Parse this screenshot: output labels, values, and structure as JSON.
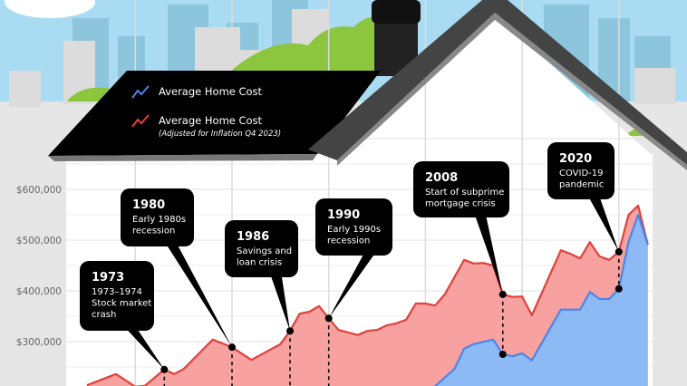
{
  "colors": {
    "blue_line": "#4a86e8",
    "blue_fill": "#8dbaf5",
    "red_line": "#e0413a",
    "red_fill": "#f7a1a0",
    "sky": "#a9dcf2",
    "roof": "#000000",
    "bush": "#8cc63f"
  },
  "legend": {
    "items": [
      {
        "label": "Average Home Cost",
        "sublabel": "",
        "color": "#4a86e8",
        "icon": "line-chart-icon"
      },
      {
        "label": "Average Home Cost",
        "sublabel": "(Adjusted for Inflation Q4 2023)",
        "color": "#e0413a",
        "icon": "line-chart-icon"
      }
    ]
  },
  "chart_data": {
    "type": "area",
    "title": "",
    "xlabel": "",
    "ylabel": "",
    "ylim": [
      213000,
      750000
    ],
    "xlim": [
      1961,
      2026
    ],
    "grid": true,
    "legend_position": "top-left",
    "y_ticks": [
      {
        "value": 600000,
        "label": "$600,000"
      },
      {
        "value": 500000,
        "label": "$500,000"
      },
      {
        "value": 400000,
        "label": "$400,000"
      },
      {
        "value": 300000,
        "label": "$300,000"
      }
    ],
    "series": [
      {
        "name": "Average Home Cost (Adjusted for Inflation Q4 2023)",
        "color": "#e0413a",
        "x": [
          1965,
          1968,
          1970,
          1971,
          1973,
          1974,
          1975,
          1978,
          1980,
          1982,
          1985,
          1986,
          1987,
          1988,
          1989,
          1990,
          1991,
          1993,
          1994,
          1995,
          1996,
          1997,
          1998,
          1999,
          2000,
          2001,
          2002,
          2004,
          2005,
          2006,
          2007,
          2008,
          2009,
          2010,
          2011,
          2014,
          2015,
          2016,
          2017,
          2018,
          2019,
          2020,
          2021,
          2022,
          2023
        ],
        "y": [
          214000,
          236000,
          211000,
          213000,
          245000,
          236000,
          246000,
          304000,
          289000,
          264000,
          295000,
          321000,
          355000,
          359000,
          370000,
          346000,
          323000,
          313000,
          321000,
          323000,
          332000,
          336000,
          343000,
          375000,
          375000,
          371000,
          393000,
          461000,
          454000,
          455000,
          450000,
          393000,
          388000,
          389000,
          352000,
          480000,
          473000,
          464000,
          496000,
          468000,
          461000,
          477000,
          550000,
          568000,
          491000
        ]
      },
      {
        "name": "Average Home Cost",
        "color": "#4a86e8",
        "x": [
          2000,
          2001,
          2003,
          2004,
          2005,
          2007,
          2008,
          2009,
          2010,
          2011,
          2014,
          2016,
          2017,
          2018,
          2019,
          2020,
          2021,
          2022,
          2023
        ],
        "y": [
          200000,
          212000,
          246000,
          286000,
          295000,
          304000,
          275000,
          271000,
          277000,
          263000,
          363000,
          363000,
          398000,
          384000,
          384000,
          404000,
          496000,
          550000,
          491000
        ]
      }
    ],
    "annotations": [
      {
        "year": "1973",
        "text": [
          "1973–1974",
          "Stock market",
          "crash"
        ],
        "x": 1973
      },
      {
        "year": "1980",
        "text": [
          "Early 1980s",
          "recession"
        ],
        "x": 1980
      },
      {
        "year": "1986",
        "text": [
          "Savings and",
          "loan crisis"
        ],
        "x": 1986
      },
      {
        "year": "1990",
        "text": [
          "Early 1990s",
          "recession"
        ],
        "x": 1990
      },
      {
        "year": "2008",
        "text": [
          "Start of subprime",
          "mortgage crisis"
        ],
        "x": 2008
      },
      {
        "year": "2020",
        "text": [
          "COVID-19",
          "pandemic"
        ],
        "x": 2020
      }
    ]
  }
}
